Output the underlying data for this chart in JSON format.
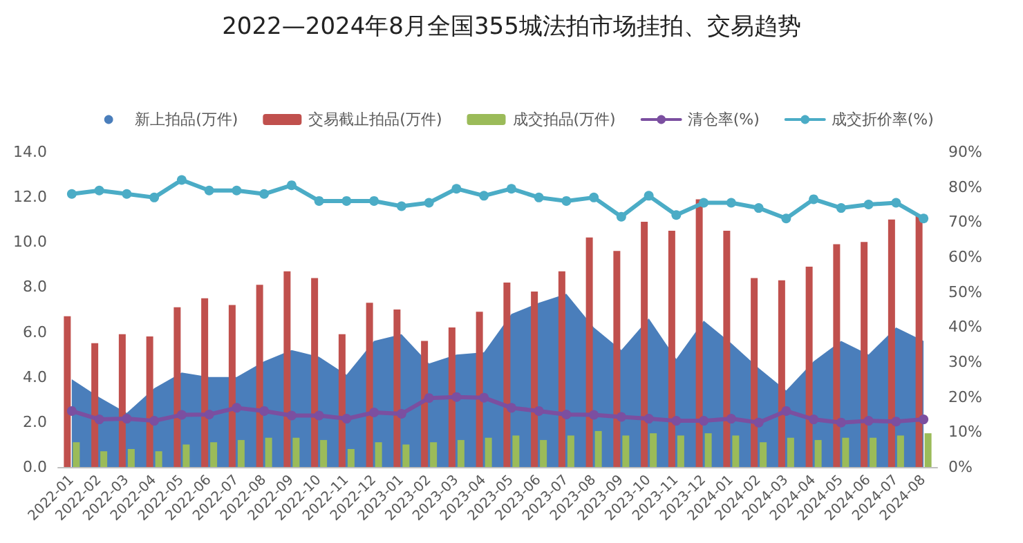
{
  "chart_data": {
    "type": "bar",
    "title": "2022—2024年8月全国355城法拍市场挂拍、交易趋势",
    "categories": [
      "2022-01",
      "2022-02",
      "2022-03",
      "2022-04",
      "2022-05",
      "2022-06",
      "2022-07",
      "2022-08",
      "2022-09",
      "2022-10",
      "2022-11",
      "2022-12",
      "2023-01",
      "2023-02",
      "2023-03",
      "2023-04",
      "2023-05",
      "2023-06",
      "2023-07",
      "2023-08",
      "2023-09",
      "2023-10",
      "2023-11",
      "2023-12",
      "2024-01",
      "2024-02",
      "2024-03",
      "2024-04",
      "2024-05",
      "2024-06",
      "2024-07",
      "2024-08"
    ],
    "series": [
      {
        "name": "新上拍品(万件)",
        "type": "area",
        "marker": "none",
        "color": "#4a7ebb",
        "values": [
          3.9,
          3.1,
          2.4,
          3.5,
          4.2,
          4.0,
          4.0,
          4.7,
          5.2,
          4.9,
          4.1,
          5.6,
          5.9,
          4.6,
          5.0,
          5.1,
          6.8,
          7.3,
          7.7,
          6.2,
          5.2,
          6.6,
          4.8,
          6.5,
          5.5,
          4.4,
          3.4,
          4.7,
          5.6,
          5.0,
          6.2,
          5.6
        ]
      },
      {
        "name": "交易截止拍品(万件)",
        "color": "#c0504d",
        "values": [
          6.7,
          5.5,
          5.9,
          5.8,
          7.1,
          7.5,
          7.2,
          8.1,
          8.7,
          8.4,
          5.9,
          7.3,
          7.0,
          5.6,
          6.2,
          6.9,
          8.2,
          7.8,
          8.7,
          10.2,
          9.6,
          10.9,
          10.5,
          11.9,
          10.5,
          8.4,
          8.3,
          8.9,
          9.9,
          10.0,
          11.0,
          11.2
        ]
      },
      {
        "name": "成交拍品(万件)",
        "color": "#9bbb59",
        "values": [
          1.1,
          0.7,
          0.8,
          0.7,
          1.0,
          1.1,
          1.2,
          1.3,
          1.3,
          1.2,
          0.8,
          1.1,
          1.0,
          1.1,
          1.2,
          1.3,
          1.4,
          1.2,
          1.4,
          1.6,
          1.4,
          1.5,
          1.4,
          1.5,
          1.4,
          1.1,
          1.3,
          1.2,
          1.3,
          1.3,
          1.4,
          1.5
        ]
      },
      {
        "name": "清仓率(%)",
        "type": "line",
        "axis": "y2",
        "color": "#7b4fa0",
        "values": [
          16,
          13.6,
          13.8,
          13.2,
          14.9,
          15,
          16.9,
          16,
          14.7,
          14.7,
          13.8,
          15.6,
          15.2,
          19.7,
          20,
          19.8,
          16.9,
          16,
          15,
          14.9,
          14.3,
          13.8,
          13.2,
          13.2,
          13.8,
          12.7,
          16,
          13.6,
          12.7,
          13.2,
          13,
          13.6
        ]
      },
      {
        "name": "成交折价率(%)",
        "type": "line",
        "axis": "y2",
        "color": "#4bacc6",
        "values": [
          78,
          79,
          78,
          77,
          82,
          79,
          79,
          78,
          80.5,
          76,
          76,
          76,
          74.5,
          75.5,
          79.5,
          77.5,
          79.5,
          77,
          76,
          77,
          71.5,
          77.5,
          72,
          75.5,
          75.5,
          74,
          71,
          76.5,
          74,
          75,
          75.5,
          71
        ]
      }
    ],
    "ylim": [
      0,
      14
    ],
    "yticks": [
      {
        "value": 0,
        "label": "0.0"
      },
      {
        "value": 2,
        "label": "2.0"
      },
      {
        "value": 4,
        "label": "4.0"
      },
      {
        "value": 6,
        "label": "6.0"
      },
      {
        "value": 8,
        "label": "8.0"
      },
      {
        "value": 10,
        "label": "10.0"
      },
      {
        "value": 12,
        "label": "12.0"
      },
      {
        "value": 14,
        "label": "14.0"
      }
    ],
    "y2lim": [
      0,
      90
    ],
    "y2ticks": [
      {
        "value": 0,
        "label": "0%"
      },
      {
        "value": 10,
        "label": "10%"
      },
      {
        "value": 20,
        "label": "20%"
      },
      {
        "value": 30,
        "label": "30%"
      },
      {
        "value": 40,
        "label": "40%"
      },
      {
        "value": 50,
        "label": "50%"
      },
      {
        "value": 60,
        "label": "60%"
      },
      {
        "value": 70,
        "label": "70%"
      },
      {
        "value": 80,
        "label": "80%"
      },
      {
        "value": 90,
        "label": "90%"
      }
    ],
    "grid": false,
    "legend": "top",
    "marker": "circle",
    "line_style": "solid"
  }
}
